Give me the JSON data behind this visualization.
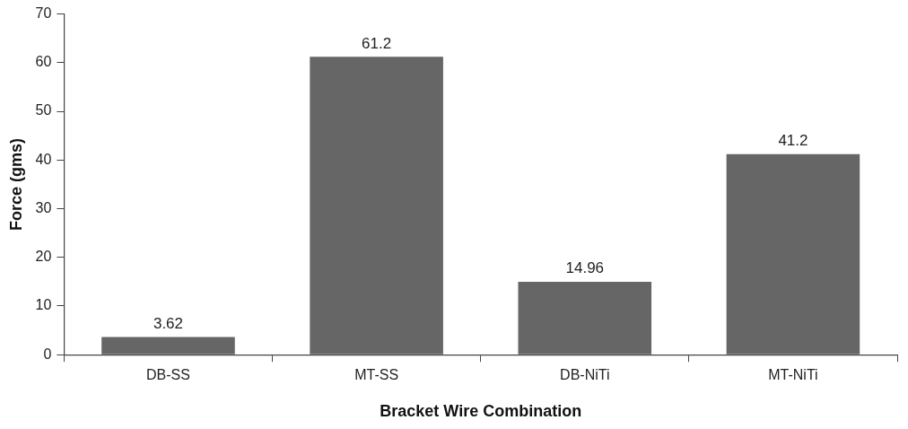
{
  "chart_data": {
    "type": "bar",
    "xlabel": "Bracket Wire Combination",
    "ylabel": "Force (gms)",
    "categories": [
      "DB-SS",
      "MT-SS",
      "DB-NiTi",
      "MT-NiTi"
    ],
    "values": [
      3.62,
      61.2,
      14.96,
      41.2
    ],
    "color": "#666666",
    "ylim": [
      0,
      70
    ],
    "yticks": [
      0,
      10,
      20,
      30,
      40,
      50,
      60,
      70
    ],
    "grid": false,
    "legend": false,
    "data_labels": true
  }
}
